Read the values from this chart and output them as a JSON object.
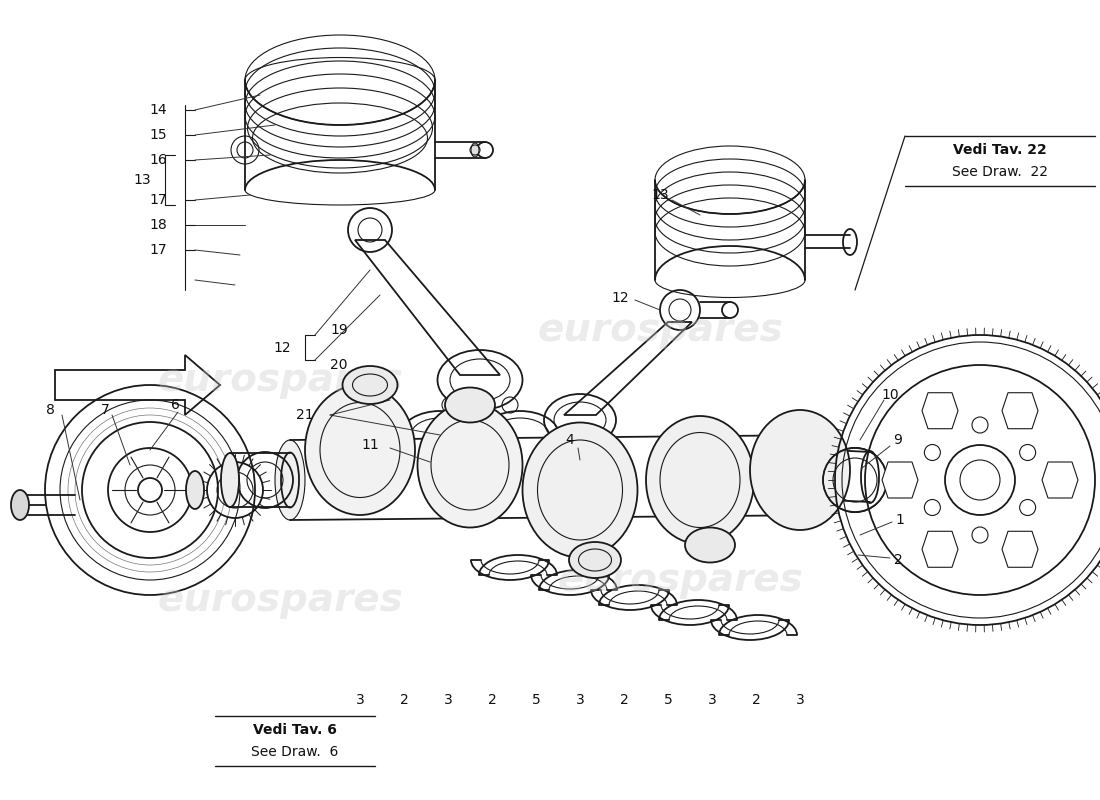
{
  "background_color": "#ffffff",
  "line_color": "#1a1a1a",
  "watermark_color": "#c8c8c8",
  "bottom_labels": [
    "3",
    "2",
    "3",
    "2",
    "5",
    "3",
    "2",
    "5",
    "3",
    "2",
    "3"
  ],
  "top_right_note_line1": "Vedi Tav. 22",
  "top_right_note_line2": "See Draw.  22",
  "bottom_left_note_line1": "Vedi Tav. 6",
  "bottom_left_note_line2": "See Draw.  6",
  "figsize": [
    11.0,
    8.0
  ],
  "dpi": 100
}
